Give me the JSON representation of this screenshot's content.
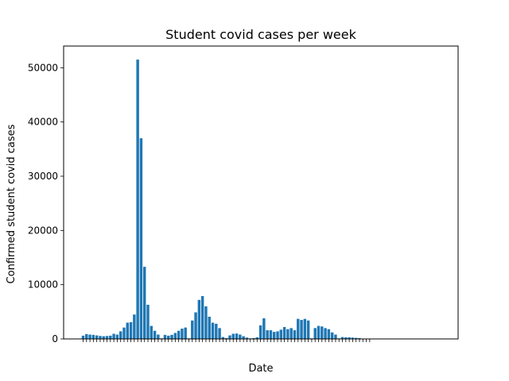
{
  "chart_data": {
    "type": "bar",
    "title": "Student covid cases per week",
    "xlabel": "Date",
    "ylabel": "Confirmed student covid cases",
    "ylim": [
      0,
      54000
    ],
    "yticks": [
      0,
      10000,
      20000,
      30000,
      40000,
      50000
    ],
    "grid": false,
    "legend": "none",
    "bar_color": "#1f77b4",
    "values": [
      600,
      900,
      800,
      750,
      650,
      550,
      500,
      550,
      600,
      950,
      800,
      1400,
      2100,
      3000,
      3100,
      4500,
      51500,
      37000,
      13300,
      6300,
      2400,
      1500,
      800,
      100,
      750,
      600,
      750,
      1100,
      1500,
      1900,
      2100,
      100,
      3400,
      4900,
      7200,
      7900,
      6000,
      4100,
      3000,
      2800,
      2000,
      350,
      150,
      650,
      950,
      1000,
      800,
      500,
      250,
      100,
      150,
      300,
      2500,
      3800,
      1600,
      1600,
      1300,
      1400,
      1700,
      2200,
      1800,
      2000,
      1600,
      3700,
      3500,
      3700,
      3400,
      100,
      2000,
      2400,
      2300,
      2000,
      1800,
      1200,
      800,
      100,
      350,
      300,
      300,
      250,
      200,
      150,
      50,
      30,
      20
    ]
  }
}
